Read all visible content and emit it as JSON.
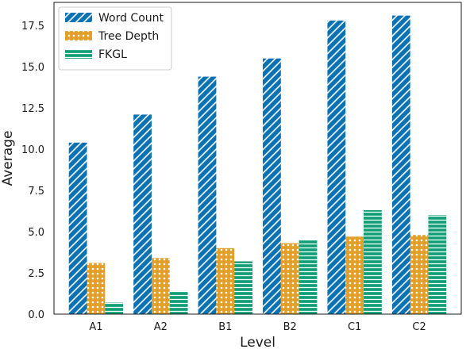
{
  "chart_data": {
    "type": "bar",
    "categories": [
      "A1",
      "A2",
      "B1",
      "B2",
      "C1",
      "C2"
    ],
    "series": [
      {
        "name": "Word Count",
        "values": [
          10.4,
          12.1,
          14.4,
          15.5,
          17.8,
          18.1
        ],
        "color": "#0a72b3",
        "pattern": "diagonal-hatch"
      },
      {
        "name": "Tree Depth",
        "values": [
          3.1,
          3.4,
          4.0,
          4.3,
          4.7,
          4.8
        ],
        "color": "#e2a02a",
        "pattern": "dots"
      },
      {
        "name": "FKGL",
        "values": [
          0.7,
          1.4,
          3.2,
          4.5,
          6.3,
          6.0
        ],
        "color": "#0f9e76",
        "pattern": "horizontal-lines"
      }
    ],
    "xlabel": "Level",
    "ylabel": "Average",
    "ylim": [
      0,
      18.9
    ],
    "yticks": [
      "0.0",
      "2.5",
      "5.0",
      "7.5",
      "10.0",
      "12.5",
      "15.0",
      "17.5"
    ],
    "grid": false,
    "legend_position": "top-left"
  }
}
